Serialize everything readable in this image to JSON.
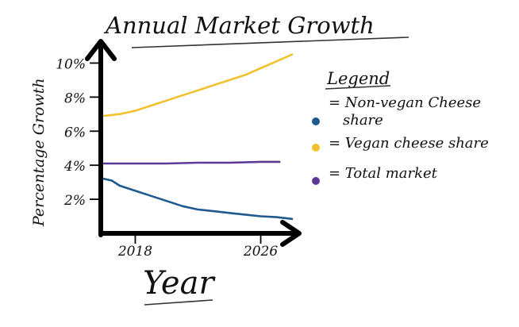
{
  "chart_data": {
    "type": "line",
    "title": "Annual Market Growth",
    "xlabel": "Year",
    "ylabel": "Percentage Growth",
    "x_ticks": [
      2018,
      2026
    ],
    "x_tick_labels": [
      "2018",
      "2026"
    ],
    "xlim": [
      2015.8,
      2028.2
    ],
    "y_ticks": [
      2,
      4,
      6,
      8,
      10
    ],
    "y_tick_labels": [
      "2%",
      "4%",
      "6%",
      "8%",
      "10%"
    ],
    "ylim": [
      0,
      11
    ],
    "grid": false,
    "legend": {
      "title": "Legend",
      "placement": "right",
      "entries": [
        {
          "label": "= Non-vegan Cheese share",
          "series": 0
        },
        {
          "label": "= Vegan cheese share",
          "series": 1
        },
        {
          "label": "= Total market",
          "series": 2
        }
      ]
    },
    "series": [
      {
        "name": "Non-vegan Cheese share",
        "color": "#1f5a8e",
        "x": [
          2016.0,
          2016.5,
          2017.0,
          2018.0,
          2019.0,
          2020.0,
          2021.0,
          2022.0,
          2023.0,
          2024.0,
          2025.0,
          2026.0,
          2027.0,
          2028.0
        ],
        "values": [
          3.2,
          3.1,
          2.8,
          2.5,
          2.2,
          1.9,
          1.6,
          1.4,
          1.3,
          1.2,
          1.1,
          1.0,
          0.95,
          0.85
        ]
      },
      {
        "name": "Vegan cheese share",
        "color": "#f2c12e",
        "x": [
          2016.0,
          2017.0,
          2018.0,
          2019.0,
          2020.0,
          2021.0,
          2022.0,
          2023.0,
          2024.0,
          2025.0,
          2026.0,
          2027.0,
          2028.0
        ],
        "values": [
          6.9,
          7.0,
          7.2,
          7.5,
          7.8,
          8.1,
          8.4,
          8.7,
          9.0,
          9.3,
          9.7,
          10.1,
          10.5
        ]
      },
      {
        "name": "Total market",
        "color": "#5b3a96",
        "x": [
          2016.0,
          2018.0,
          2020.0,
          2022.0,
          2024.0,
          2026.0,
          2027.2
        ],
        "values": [
          4.1,
          4.1,
          4.1,
          4.15,
          4.15,
          4.2,
          4.2
        ]
      }
    ]
  }
}
